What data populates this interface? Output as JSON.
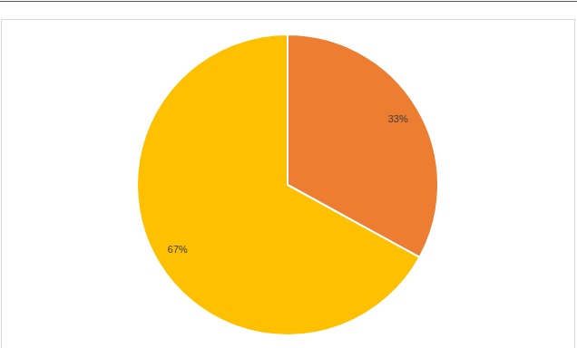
{
  "chart_data": {
    "type": "pie",
    "values": [
      33,
      67
    ],
    "value_labels": [
      "33%",
      "67%"
    ],
    "colors": [
      "#ed7d31",
      "#ffc000"
    ],
    "data_labels": true
  }
}
